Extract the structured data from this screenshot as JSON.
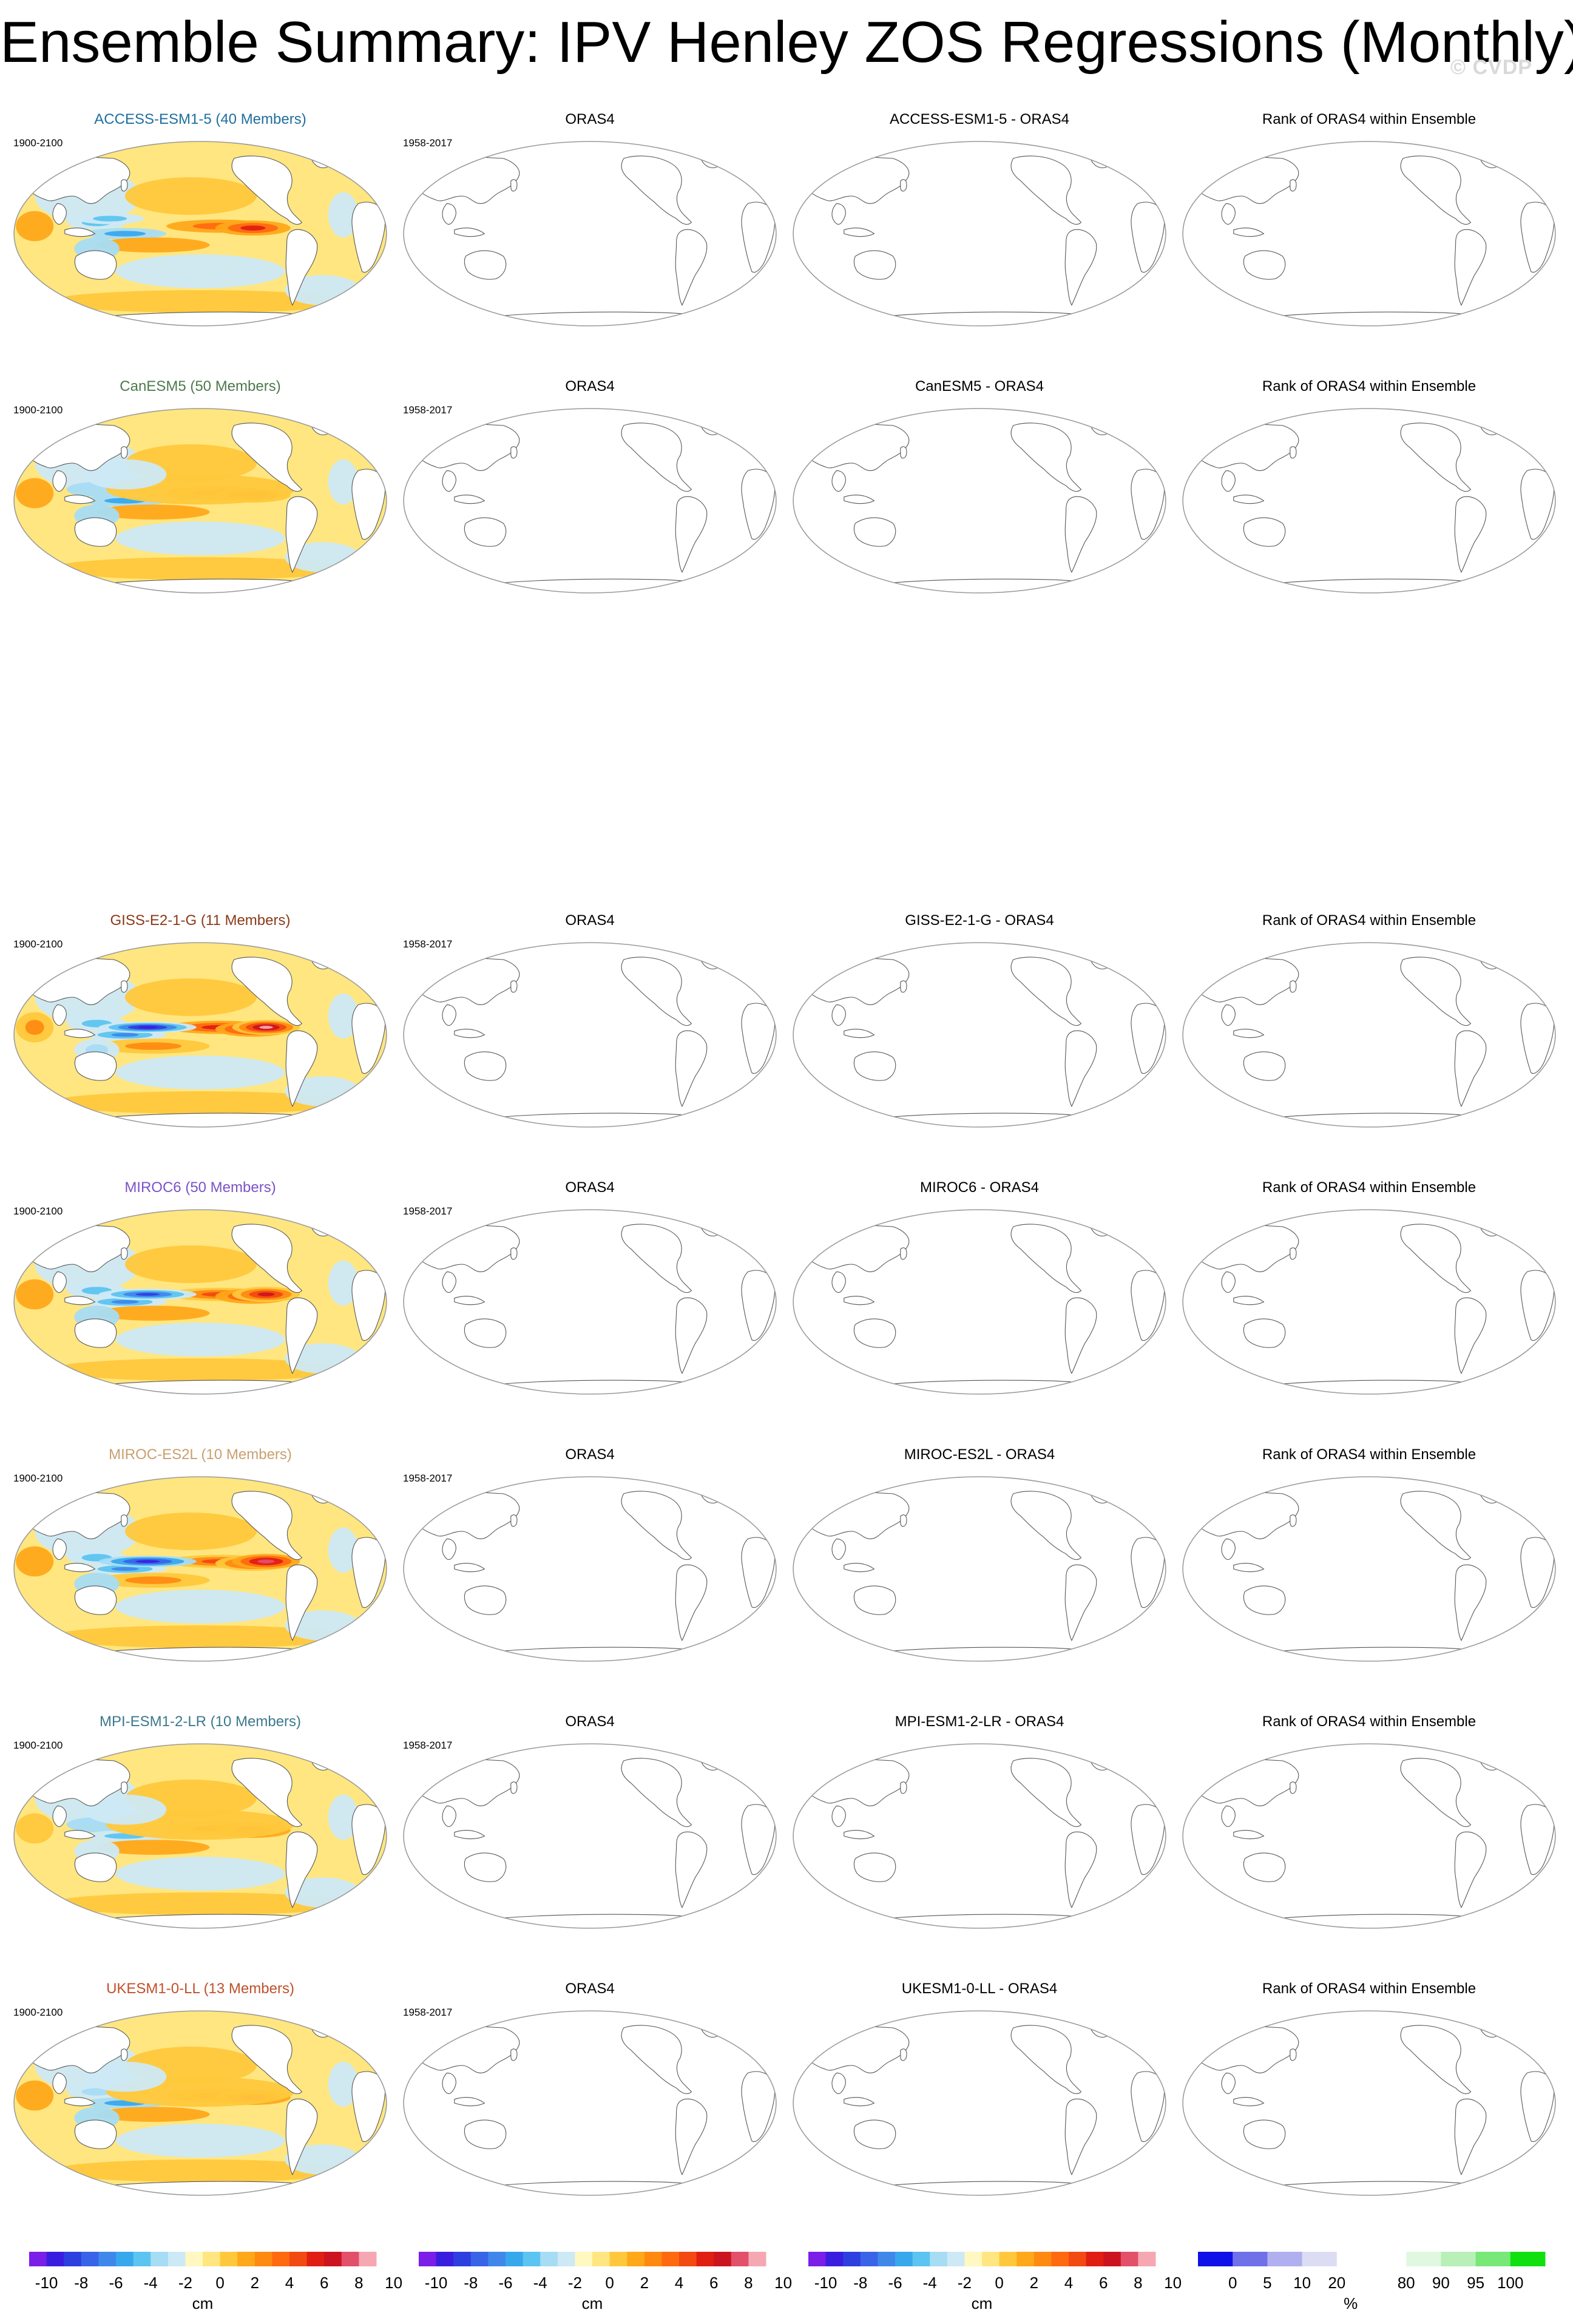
{
  "title": "Ensemble Summary: IPV Henley ZOS Regressions (Monthly)",
  "watermark": "© CVDP",
  "model_period": "1900-2100",
  "obs_period": "1958-2017",
  "obs_title": "ORAS4",
  "rank_title": "Rank of ORAS4 within Ensemble",
  "diff_suffix": " - ORAS4",
  "colors": {
    "land": "#ffffff",
    "outline": "#555555",
    "frame": "#9a9a9a"
  },
  "rows": [
    {
      "model": "ACCESS-ESM1-5",
      "label": "ACCESS-ESM1-5 (40 Members)",
      "label_color": "#1f6f9c",
      "pattern": "wpac",
      "strength": 0.8
    },
    {
      "model": "CanESM5",
      "label": "CanESM5 (50 Members)",
      "label_color": "#4d7a4d",
      "pattern": "broad",
      "strength": 0.7
    },
    {
      "model": "GISS-E2-1-G",
      "label": "GISS-E2-1-G (11 Members)",
      "label_color": "#8b3a1a",
      "pattern": "strong",
      "strength": 1.0
    },
    {
      "model": "MIROC6",
      "label": "MIROC6 (50 Members)",
      "label_color": "#7b52c7",
      "pattern": "strong",
      "strength": 0.85
    },
    {
      "model": "MIROC-ES2L",
      "label": "MIROC-ES2L (10 Members)",
      "label_color": "#c9a070",
      "pattern": "strong",
      "strength": 0.9
    },
    {
      "model": "MPI-ESM1-2-LR",
      "label": "MPI-ESM1-2-LR (10 Members)",
      "label_color": "#3b7a8c",
      "pattern": "broad",
      "strength": 0.6
    },
    {
      "model": "UKESM1-0-LL",
      "label": "UKESM1-0-LL (13 Members)",
      "label_color": "#c0502a",
      "pattern": "broad",
      "strength": 0.75
    }
  ],
  "colorbars": {
    "cm": {
      "unit": "cm",
      "ticks": [
        "-10",
        "-8",
        "-6",
        "-4",
        "-2",
        "0",
        "2",
        "4",
        "6",
        "8",
        "10"
      ],
      "colors": [
        "#7a1ee8",
        "#3a1ee0",
        "#2e3fe0",
        "#3a64e8",
        "#3f88ea",
        "#38a8ec",
        "#5cc4f0",
        "#a6dcf4",
        "#cde9f6",
        "#fff8c0",
        "#ffe680",
        "#ffc83c",
        "#ffa81a",
        "#ff8a12",
        "#ff6a10",
        "#f24a10",
        "#e01e14",
        "#cc1420",
        "#e2506a",
        "#f5a8b2"
      ]
    },
    "rank": {
      "unit": "%",
      "ticks": [
        "0",
        "5",
        "10",
        "20",
        "80",
        "90",
        "95",
        "100"
      ],
      "colors": [
        "#1010e8",
        "#7070e8",
        "#b0b0f0",
        "#dcdcf4",
        "#ffffff",
        "#ffffff",
        "#e0f8e0",
        "#b8f0b8",
        "#78e878",
        "#10e010"
      ]
    }
  }
}
